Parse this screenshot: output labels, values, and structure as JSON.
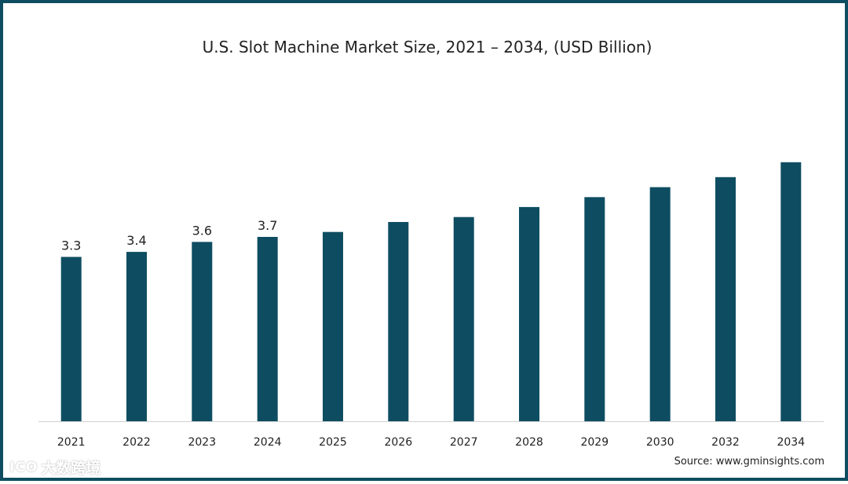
{
  "title": "U.S.  Slot Machine Market Size, 2021 – 2034, (USD Billion)",
  "source": "Source: www.gminsights.com",
  "watermark": {
    "logo": "ICO",
    "text": "大数跨境"
  },
  "colors": {
    "bar": "#0e4d61",
    "border": "#0e4d61",
    "axis": "#d0d0d0",
    "text": "#222222"
  },
  "chart_data": {
    "type": "bar",
    "title": "U.S.  Slot Machine Market Size, 2021 – 2034, (USD Billion)",
    "xlabel": "",
    "ylabel": "",
    "categories": [
      "2021",
      "2022",
      "2023",
      "2024",
      "2025",
      "2026",
      "2027",
      "2028",
      "2029",
      "2030",
      "2032",
      "2034"
    ],
    "values": [
      3.3,
      3.4,
      3.6,
      3.7,
      3.8,
      4.0,
      4.1,
      4.3,
      4.5,
      4.7,
      4.9,
      5.2
    ],
    "data_labels": [
      "3.3",
      "3.4",
      "3.6",
      "3.7",
      "",
      "",
      "",
      "",
      "",
      "",
      "",
      ""
    ],
    "ylim": [
      0,
      5.8
    ],
    "grid": false,
    "legend": "none"
  }
}
